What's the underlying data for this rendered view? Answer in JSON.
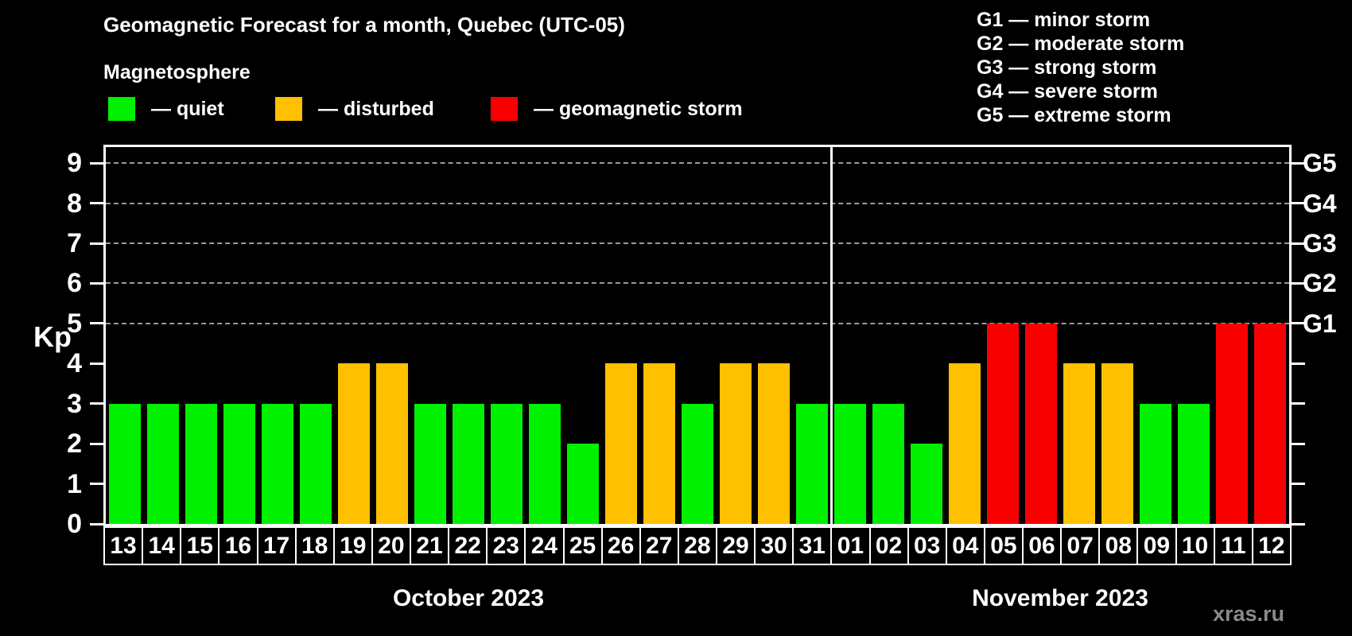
{
  "title": "Geomagnetic Forecast for a month, Quebec (UTC-05)",
  "subtitle": "Magnetosphere",
  "legend": {
    "items": [
      {
        "label": "— quiet",
        "status": "quiet"
      },
      {
        "label": "— disturbed",
        "status": "disturbed"
      },
      {
        "label": "— geomagnetic storm",
        "status": "storm"
      }
    ]
  },
  "g_legend": {
    "items": [
      "G1 — minor storm",
      "G2 — moderate storm",
      "G3 — strong storm",
      "G4 — severe storm",
      "G5 — extreme storm"
    ]
  },
  "watermark": "xras.ru",
  "chart_data": {
    "type": "bar",
    "title": "Geomagnetic Forecast for a month, Quebec (UTC-05)",
    "ylabel": "Kp",
    "ylim": [
      0,
      9.4
    ],
    "y_ticks": [
      0,
      1,
      2,
      3,
      4,
      5,
      6,
      7,
      8,
      9
    ],
    "gridlines_at": [
      5,
      6,
      7,
      8,
      9
    ],
    "grid_color": "#9b9b9b",
    "axis_color": "#ffffff",
    "legend_position": "top-left",
    "right_axis_labels": [
      {
        "kp": 5,
        "label": "G1"
      },
      {
        "kp": 6,
        "label": "G2"
      },
      {
        "kp": 7,
        "label": "G3"
      },
      {
        "kp": 8,
        "label": "G4"
      },
      {
        "kp": 9,
        "label": "G5"
      }
    ],
    "colors": {
      "quiet": "#00f000",
      "disturbed": "#ffc000",
      "storm": "#f80000"
    },
    "months": [
      {
        "label": "October 2023",
        "days": [
          {
            "date": "13",
            "kp": 3,
            "status": "quiet"
          },
          {
            "date": "14",
            "kp": 3,
            "status": "quiet"
          },
          {
            "date": "15",
            "kp": 3,
            "status": "quiet"
          },
          {
            "date": "16",
            "kp": 3,
            "status": "quiet"
          },
          {
            "date": "17",
            "kp": 3,
            "status": "quiet"
          },
          {
            "date": "18",
            "kp": 3,
            "status": "quiet"
          },
          {
            "date": "19",
            "kp": 4,
            "status": "disturbed"
          },
          {
            "date": "20",
            "kp": 4,
            "status": "disturbed"
          },
          {
            "date": "21",
            "kp": 3,
            "status": "quiet"
          },
          {
            "date": "22",
            "kp": 3,
            "status": "quiet"
          },
          {
            "date": "23",
            "kp": 3,
            "status": "quiet"
          },
          {
            "date": "24",
            "kp": 3,
            "status": "quiet"
          },
          {
            "date": "25",
            "kp": 2,
            "status": "quiet"
          },
          {
            "date": "26",
            "kp": 4,
            "status": "disturbed"
          },
          {
            "date": "27",
            "kp": 4,
            "status": "disturbed"
          },
          {
            "date": "28",
            "kp": 3,
            "status": "quiet"
          },
          {
            "date": "29",
            "kp": 4,
            "status": "disturbed"
          },
          {
            "date": "30",
            "kp": 4,
            "status": "disturbed"
          },
          {
            "date": "31",
            "kp": 3,
            "status": "quiet"
          }
        ]
      },
      {
        "label": "November 2023",
        "days": [
          {
            "date": "01",
            "kp": 3,
            "status": "quiet"
          },
          {
            "date": "02",
            "kp": 3,
            "status": "quiet"
          },
          {
            "date": "03",
            "kp": 2,
            "status": "quiet"
          },
          {
            "date": "04",
            "kp": 4,
            "status": "disturbed"
          },
          {
            "date": "05",
            "kp": 5,
            "status": "storm"
          },
          {
            "date": "06",
            "kp": 5,
            "status": "storm"
          },
          {
            "date": "07",
            "kp": 4,
            "status": "disturbed"
          },
          {
            "date": "08",
            "kp": 4,
            "status": "disturbed"
          },
          {
            "date": "09",
            "kp": 3,
            "status": "quiet"
          },
          {
            "date": "10",
            "kp": 3,
            "status": "quiet"
          },
          {
            "date": "11",
            "kp": 5,
            "status": "storm"
          },
          {
            "date": "12",
            "kp": 5,
            "status": "storm"
          }
        ]
      }
    ]
  }
}
